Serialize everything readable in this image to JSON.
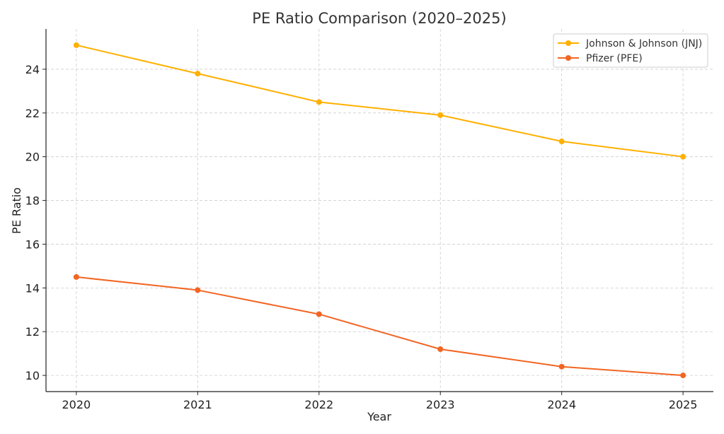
{
  "chart_data": {
    "type": "line",
    "title": "PE Ratio Comparison (2020–2025)",
    "xlabel": "Year",
    "ylabel": "PE Ratio",
    "x": [
      2020,
      2021,
      2022,
      2023,
      2024,
      2025
    ],
    "x_tick_labels": [
      "2020",
      "2021",
      "2022",
      "2023",
      "2024",
      "2025"
    ],
    "y_ticks": [
      10,
      12,
      14,
      16,
      18,
      20,
      22,
      24
    ],
    "y_tick_labels": [
      "10",
      "12",
      "14",
      "16",
      "18",
      "20",
      "22",
      "24"
    ],
    "xlim": [
      2019.75,
      2025.25
    ],
    "ylim": [
      9.26,
      25.84
    ],
    "grid": true,
    "grid_style": "dashed",
    "legend_position": "top-right",
    "series": [
      {
        "name": "Johnson & Johnson (JNJ)",
        "color": "#FFB000",
        "marker": "circle",
        "values": [
          25.1,
          23.8,
          22.5,
          21.9,
          20.7,
          20.0
        ]
      },
      {
        "name": "Pfizer (PFE)",
        "color": "#F26522",
        "marker": "circle",
        "values": [
          14.5,
          13.9,
          12.8,
          11.2,
          10.4,
          10.0
        ]
      }
    ]
  }
}
